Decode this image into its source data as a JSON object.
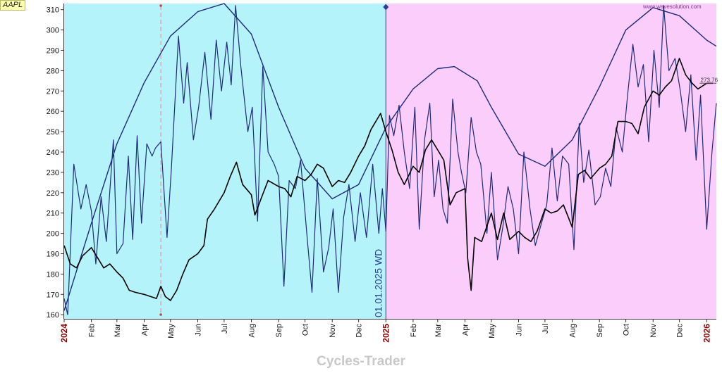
{
  "ticker": "AAPL",
  "brand": "Cycles-Trader",
  "watermark": "www.wavesolution.com",
  "cycle_marker_label": "01.01.2025 WD",
  "last_price_label": "273.76",
  "colors": {
    "past_zone": "#b4f3fa",
    "future_zone": "#fbcdfb",
    "price_line": "#000000",
    "detail_cycle": "#1f2a7a",
    "dominant_cycle": "#1f2a7a",
    "year_label": "#8b0000",
    "ticker_bg": "#ffffb0"
  },
  "chart_data": {
    "type": "line",
    "title": "",
    "xlabel": "",
    "ylabel": "",
    "ylim": [
      158,
      313
    ],
    "y_ticks": [
      160,
      170,
      180,
      190,
      200,
      210,
      220,
      230,
      240,
      250,
      260,
      270,
      280,
      290,
      300,
      310
    ],
    "x_range": [
      "2024-01-01",
      "2026-01-12"
    ],
    "x_ticks": [
      {
        "label": "2024",
        "date": "2024-01-01",
        "year": true
      },
      {
        "label": "Feb",
        "date": "2024-02-01"
      },
      {
        "label": "Mar",
        "date": "2024-03-01"
      },
      {
        "label": "Apr",
        "date": "2024-04-01"
      },
      {
        "label": "May",
        "date": "2024-05-01"
      },
      {
        "label": "Jun",
        "date": "2024-06-01"
      },
      {
        "label": "Jul",
        "date": "2024-07-01"
      },
      {
        "label": "Aug",
        "date": "2024-08-01"
      },
      {
        "label": "Sep",
        "date": "2024-09-01"
      },
      {
        "label": "Oct",
        "date": "2024-10-01"
      },
      {
        "label": "Nov",
        "date": "2024-11-01"
      },
      {
        "label": "Dec",
        "date": "2024-12-01"
      },
      {
        "label": "2025",
        "date": "2025-01-01",
        "year": true
      },
      {
        "label": "Feb",
        "date": "2025-02-01"
      },
      {
        "label": "Mar",
        "date": "2025-03-01"
      },
      {
        "label": "Apr",
        "date": "2025-04-01"
      },
      {
        "label": "May",
        "date": "2025-05-01"
      },
      {
        "label": "Jun",
        "date": "2025-06-01"
      },
      {
        "label": "Jul",
        "date": "2025-07-01"
      },
      {
        "label": "Aug",
        "date": "2025-08-01"
      },
      {
        "label": "Sep",
        "date": "2025-09-01"
      },
      {
        "label": "Oct",
        "date": "2025-10-01"
      },
      {
        "label": "Nov",
        "date": "2025-11-01"
      },
      {
        "label": "Dec",
        "date": "2025-12-01"
      },
      {
        "label": "2026",
        "date": "2026-01-01",
        "year": true
      }
    ],
    "cycle_start_date": "2025-01-01",
    "vertical_marker_date": "2024-04-20",
    "series": [
      {
        "key": "price",
        "points": [
          [
            "2024-01-01",
            194
          ],
          [
            "2024-01-08",
            185
          ],
          [
            "2024-01-15",
            183
          ],
          [
            "2024-01-22",
            189
          ],
          [
            "2024-02-01",
            193
          ],
          [
            "2024-02-08",
            188
          ],
          [
            "2024-02-15",
            183
          ],
          [
            "2024-02-22",
            185
          ],
          [
            "2024-03-01",
            181
          ],
          [
            "2024-03-08",
            178
          ],
          [
            "2024-03-15",
            172
          ],
          [
            "2024-03-22",
            171
          ],
          [
            "2024-04-01",
            170
          ],
          [
            "2024-04-08",
            169
          ],
          [
            "2024-04-15",
            168
          ],
          [
            "2024-04-20",
            174
          ],
          [
            "2024-04-25",
            169
          ],
          [
            "2024-05-01",
            167
          ],
          [
            "2024-05-08",
            172
          ],
          [
            "2024-05-15",
            180
          ],
          [
            "2024-05-22",
            187
          ],
          [
            "2024-06-01",
            190
          ],
          [
            "2024-06-08",
            194
          ],
          [
            "2024-06-12",
            207
          ],
          [
            "2024-06-20",
            212
          ],
          [
            "2024-07-01",
            220
          ],
          [
            "2024-07-08",
            228
          ],
          [
            "2024-07-15",
            235
          ],
          [
            "2024-07-22",
            224
          ],
          [
            "2024-08-01",
            219
          ],
          [
            "2024-08-05",
            209
          ],
          [
            "2024-08-12",
            217
          ],
          [
            "2024-08-20",
            226
          ],
          [
            "2024-09-01",
            223
          ],
          [
            "2024-09-08",
            222
          ],
          [
            "2024-09-15",
            218
          ],
          [
            "2024-09-22",
            228
          ],
          [
            "2024-10-01",
            226
          ],
          [
            "2024-10-08",
            229
          ],
          [
            "2024-10-15",
            234
          ],
          [
            "2024-10-22",
            232
          ],
          [
            "2024-11-01",
            223
          ],
          [
            "2024-11-08",
            226
          ],
          [
            "2024-11-15",
            225
          ],
          [
            "2024-11-22",
            230
          ],
          [
            "2024-12-01",
            238
          ],
          [
            "2024-12-08",
            243
          ],
          [
            "2024-12-15",
            251
          ],
          [
            "2024-12-26",
            259
          ],
          [
            "2025-01-01",
            250
          ],
          [
            "2025-01-08",
            241
          ],
          [
            "2025-01-15",
            230
          ],
          [
            "2025-01-22",
            224
          ],
          [
            "2025-02-01",
            233
          ],
          [
            "2025-02-08",
            230
          ],
          [
            "2025-02-15",
            241
          ],
          [
            "2025-02-22",
            246
          ],
          [
            "2025-03-01",
            241
          ],
          [
            "2025-03-08",
            236
          ],
          [
            "2025-03-15",
            214
          ],
          [
            "2025-03-22",
            220
          ],
          [
            "2025-04-01",
            222
          ],
          [
            "2025-04-04",
            188
          ],
          [
            "2025-04-08",
            172
          ],
          [
            "2025-04-12",
            198
          ],
          [
            "2025-04-20",
            196
          ],
          [
            "2025-05-01",
            210
          ],
          [
            "2025-05-08",
            197
          ],
          [
            "2025-05-15",
            210
          ],
          [
            "2025-05-22",
            197
          ],
          [
            "2025-06-01",
            201
          ],
          [
            "2025-06-08",
            198
          ],
          [
            "2025-06-15",
            196
          ],
          [
            "2025-06-22",
            201
          ],
          [
            "2025-07-01",
            212
          ],
          [
            "2025-07-08",
            210
          ],
          [
            "2025-07-15",
            211
          ],
          [
            "2025-07-22",
            214
          ],
          [
            "2025-08-01",
            203
          ],
          [
            "2025-08-08",
            229
          ],
          [
            "2025-08-15",
            231
          ],
          [
            "2025-08-22",
            227
          ],
          [
            "2025-09-01",
            232
          ],
          [
            "2025-09-08",
            234
          ],
          [
            "2025-09-15",
            238
          ],
          [
            "2025-09-22",
            255
          ],
          [
            "2025-10-01",
            255
          ],
          [
            "2025-10-08",
            254
          ],
          [
            "2025-10-15",
            249
          ],
          [
            "2025-10-22",
            262
          ],
          [
            "2025-11-01",
            270
          ],
          [
            "2025-11-08",
            268
          ],
          [
            "2025-11-15",
            272
          ],
          [
            "2025-11-22",
            275
          ],
          [
            "2025-12-01",
            286
          ],
          [
            "2025-12-08",
            278
          ],
          [
            "2025-12-15",
            274
          ],
          [
            "2025-12-22",
            271
          ],
          [
            "2026-01-01",
            273.8
          ],
          [
            "2026-01-08",
            273.8
          ]
        ]
      },
      {
        "key": "detail_cycle",
        "points": [
          [
            "2024-01-01",
            168
          ],
          [
            "2024-01-05",
            160
          ],
          [
            "2024-01-12",
            234
          ],
          [
            "2024-01-20",
            212
          ],
          [
            "2024-01-26",
            224
          ],
          [
            "2024-02-01",
            211
          ],
          [
            "2024-02-06",
            185
          ],
          [
            "2024-02-12",
            218
          ],
          [
            "2024-02-18",
            196
          ],
          [
            "2024-02-26",
            246
          ],
          [
            "2024-03-01",
            190
          ],
          [
            "2024-03-08",
            195
          ],
          [
            "2024-03-14",
            238
          ],
          [
            "2024-03-19",
            197
          ],
          [
            "2024-03-24",
            248
          ],
          [
            "2024-03-29",
            205
          ],
          [
            "2024-04-04",
            244
          ],
          [
            "2024-04-10",
            238
          ],
          [
            "2024-04-14",
            242
          ],
          [
            "2024-04-20",
            245
          ],
          [
            "2024-04-27",
            198
          ],
          [
            "2024-05-02",
            232
          ],
          [
            "2024-05-10",
            297
          ],
          [
            "2024-05-16",
            264
          ],
          [
            "2024-05-20",
            284
          ],
          [
            "2024-05-27",
            246
          ],
          [
            "2024-06-02",
            262
          ],
          [
            "2024-06-09",
            289
          ],
          [
            "2024-06-16",
            256
          ],
          [
            "2024-06-22",
            295
          ],
          [
            "2024-06-28",
            270
          ],
          [
            "2024-07-04",
            294
          ],
          [
            "2024-07-09",
            273
          ],
          [
            "2024-07-14",
            312
          ],
          [
            "2024-07-20",
            282
          ],
          [
            "2024-07-28",
            250
          ],
          [
            "2024-08-02",
            262
          ],
          [
            "2024-08-08",
            206
          ],
          [
            "2024-08-14",
            282
          ],
          [
            "2024-08-20",
            240
          ],
          [
            "2024-08-27",
            234
          ],
          [
            "2024-09-01",
            228
          ],
          [
            "2024-09-07",
            174
          ],
          [
            "2024-09-13",
            226
          ],
          [
            "2024-09-20",
            222
          ],
          [
            "2024-09-26",
            236
          ],
          [
            "2024-10-03",
            200
          ],
          [
            "2024-10-09",
            171
          ],
          [
            "2024-10-15",
            227
          ],
          [
            "2024-10-22",
            181
          ],
          [
            "2024-10-28",
            193
          ],
          [
            "2024-11-02",
            212
          ],
          [
            "2024-11-08",
            171
          ],
          [
            "2024-11-14",
            208
          ],
          [
            "2024-11-20",
            224
          ],
          [
            "2024-11-27",
            196
          ],
          [
            "2024-12-03",
            220
          ],
          [
            "2024-12-10",
            198
          ],
          [
            "2024-12-17",
            234
          ],
          [
            "2024-12-24",
            200
          ],
          [
            "2024-12-28",
            222
          ],
          [
            "2025-01-01",
            201
          ],
          [
            "2025-01-05",
            258
          ],
          [
            "2025-01-10",
            248
          ],
          [
            "2025-01-16",
            263
          ],
          [
            "2025-01-22",
            240
          ],
          [
            "2025-01-28",
            222
          ],
          [
            "2025-02-03",
            262
          ],
          [
            "2025-02-08",
            202
          ],
          [
            "2025-02-14",
            246
          ],
          [
            "2025-02-20",
            264
          ],
          [
            "2025-02-25",
            218
          ],
          [
            "2025-03-02",
            236
          ],
          [
            "2025-03-07",
            212
          ],
          [
            "2025-03-12",
            205
          ],
          [
            "2025-03-18",
            266
          ],
          [
            "2025-03-24",
            240
          ],
          [
            "2025-03-28",
            230
          ],
          [
            "2025-04-02",
            220
          ],
          [
            "2025-04-08",
            257
          ],
          [
            "2025-04-14",
            240
          ],
          [
            "2025-04-19",
            234
          ],
          [
            "2025-04-26",
            200
          ],
          [
            "2025-05-01",
            230
          ],
          [
            "2025-05-08",
            187
          ],
          [
            "2025-05-14",
            203
          ],
          [
            "2025-05-20",
            223
          ],
          [
            "2025-05-26",
            212
          ],
          [
            "2025-06-01",
            190
          ],
          [
            "2025-06-07",
            240
          ],
          [
            "2025-06-14",
            212
          ],
          [
            "2025-06-20",
            194
          ],
          [
            "2025-06-27",
            205
          ],
          [
            "2025-07-03",
            214
          ],
          [
            "2025-07-09",
            242
          ],
          [
            "2025-07-15",
            216
          ],
          [
            "2025-07-21",
            238
          ],
          [
            "2025-07-28",
            234
          ],
          [
            "2025-08-03",
            192
          ],
          [
            "2025-08-09",
            254
          ],
          [
            "2025-08-14",
            225
          ],
          [
            "2025-08-20",
            241
          ],
          [
            "2025-08-27",
            214
          ],
          [
            "2025-09-02",
            218
          ],
          [
            "2025-09-08",
            232
          ],
          [
            "2025-09-14",
            223
          ],
          [
            "2025-09-20",
            252
          ],
          [
            "2025-09-27",
            240
          ],
          [
            "2025-10-03",
            268
          ],
          [
            "2025-10-09",
            293
          ],
          [
            "2025-10-15",
            272
          ],
          [
            "2025-10-21",
            283
          ],
          [
            "2025-10-27",
            245
          ],
          [
            "2025-11-02",
            290
          ],
          [
            "2025-11-08",
            262
          ],
          [
            "2025-11-13",
            312
          ],
          [
            "2025-11-19",
            280
          ],
          [
            "2025-11-26",
            286
          ],
          [
            "2025-12-02",
            270
          ],
          [
            "2025-12-08",
            250
          ],
          [
            "2025-12-14",
            278
          ],
          [
            "2025-12-20",
            236
          ],
          [
            "2025-12-25",
            268
          ],
          [
            "2026-01-01",
            202
          ],
          [
            "2026-01-07",
            240
          ],
          [
            "2026-01-12",
            264
          ]
        ]
      },
      {
        "key": "dominant_cycle",
        "points": [
          [
            "2024-01-01",
            162
          ],
          [
            "2024-02-01",
            205
          ],
          [
            "2024-03-01",
            244
          ],
          [
            "2024-04-01",
            274
          ],
          [
            "2024-05-01",
            297
          ],
          [
            "2024-06-01",
            309
          ],
          [
            "2024-07-01",
            313
          ],
          [
            "2024-08-01",
            298
          ],
          [
            "2024-09-01",
            262
          ],
          [
            "2024-10-01",
            232
          ],
          [
            "2024-11-01",
            217
          ],
          [
            "2024-12-01",
            224
          ],
          [
            "2025-01-01",
            252
          ],
          [
            "2025-02-01",
            271
          ],
          [
            "2025-03-01",
            281
          ],
          [
            "2025-03-20",
            282
          ],
          [
            "2025-04-15",
            275
          ],
          [
            "2025-05-01",
            262
          ],
          [
            "2025-06-01",
            239
          ],
          [
            "2025-07-01",
            233
          ],
          [
            "2025-08-01",
            246
          ],
          [
            "2025-09-01",
            272
          ],
          [
            "2025-10-01",
            300
          ],
          [
            "2025-11-01",
            311
          ],
          [
            "2025-12-01",
            307
          ],
          [
            "2026-01-01",
            295
          ],
          [
            "2026-01-12",
            292
          ]
        ]
      }
    ]
  }
}
